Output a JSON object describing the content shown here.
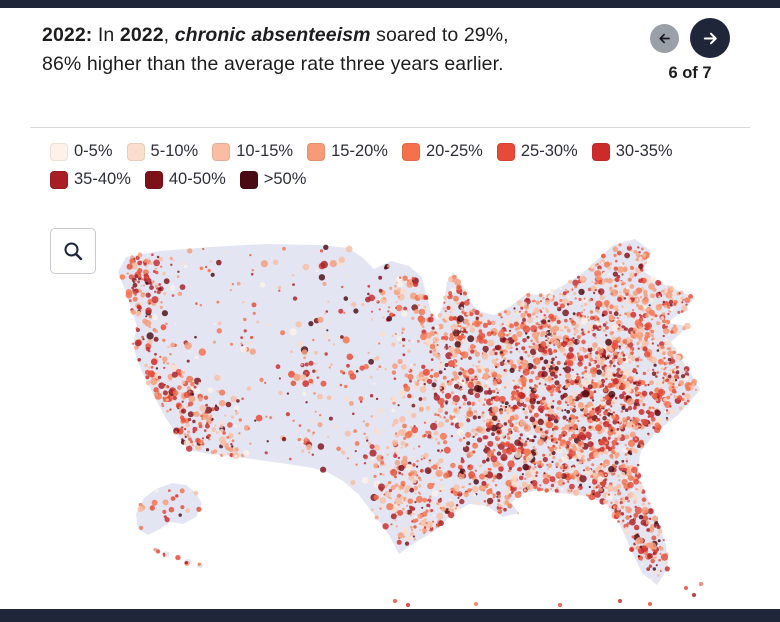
{
  "page": {
    "bar_color": "#20263a",
    "background": "#ffffff"
  },
  "header": {
    "segments": [
      {
        "text": "2022:",
        "bold": true,
        "italic": false
      },
      {
        "text": " In ",
        "bold": false,
        "italic": false
      },
      {
        "text": "2022",
        "bold": true,
        "italic": false
      },
      {
        "text": ", ",
        "bold": false,
        "italic": false
      },
      {
        "text": "chronic absenteeism",
        "bold": true,
        "italic": true
      },
      {
        "text": " soared to 29%,\n86% higher than the average rate three years earlier.",
        "bold": false,
        "italic": false
      }
    ]
  },
  "nav": {
    "pagination": "6 of 7",
    "prev": "Previous slide",
    "next": "Next slide"
  },
  "legend": {
    "items": [
      {
        "label": "0-5%",
        "color": "#fdf1e9"
      },
      {
        "label": "5-10%",
        "color": "#faddcc"
      },
      {
        "label": "10-15%",
        "color": "#f8bda2"
      },
      {
        "label": "15-20%",
        "color": "#f69b77"
      },
      {
        "label": "20-25%",
        "color": "#f3724c"
      },
      {
        "label": "25-30%",
        "color": "#e74a36"
      },
      {
        "label": "30-35%",
        "color": "#cd2a2b"
      },
      {
        "label": "35-40%",
        "color": "#a81e25"
      },
      {
        "label": "40-50%",
        "color": "#7c1118"
      },
      {
        "label": ">50%",
        "color": "#4b0a12"
      }
    ]
  },
  "map": {
    "land_color": "#e4e5f3",
    "zoom_label": "Zoom",
    "dot_opacity": "0.82"
  },
  "chart_data": {
    "type": "scatter",
    "subtype": "dot_density_map",
    "region": "United States (with Alaska and Hawaii insets)",
    "metric": "Chronic absenteeism rate, 2022",
    "legend_bins": [
      "0-5%",
      "5-10%",
      "10-15%",
      "15-20%",
      "20-25%",
      "25-30%",
      "30-35%",
      "35-40%",
      "40-50%",
      ">50%"
    ],
    "annotation": "2022: In 2022, chronic absenteeism soared to 29%, 86% higher than the average rate three years earlier.",
    "highlight_stats": {
      "rate_2022": "29%",
      "increase_vs_three_years_earlier": "86%"
    },
    "page_indicator": "6 of 7",
    "legend_position": "top",
    "notes": "Each dot is a locality; color encodes absenteeism-rate bin. Dots are densest east of the 100th meridian and along the Pacific coast."
  }
}
